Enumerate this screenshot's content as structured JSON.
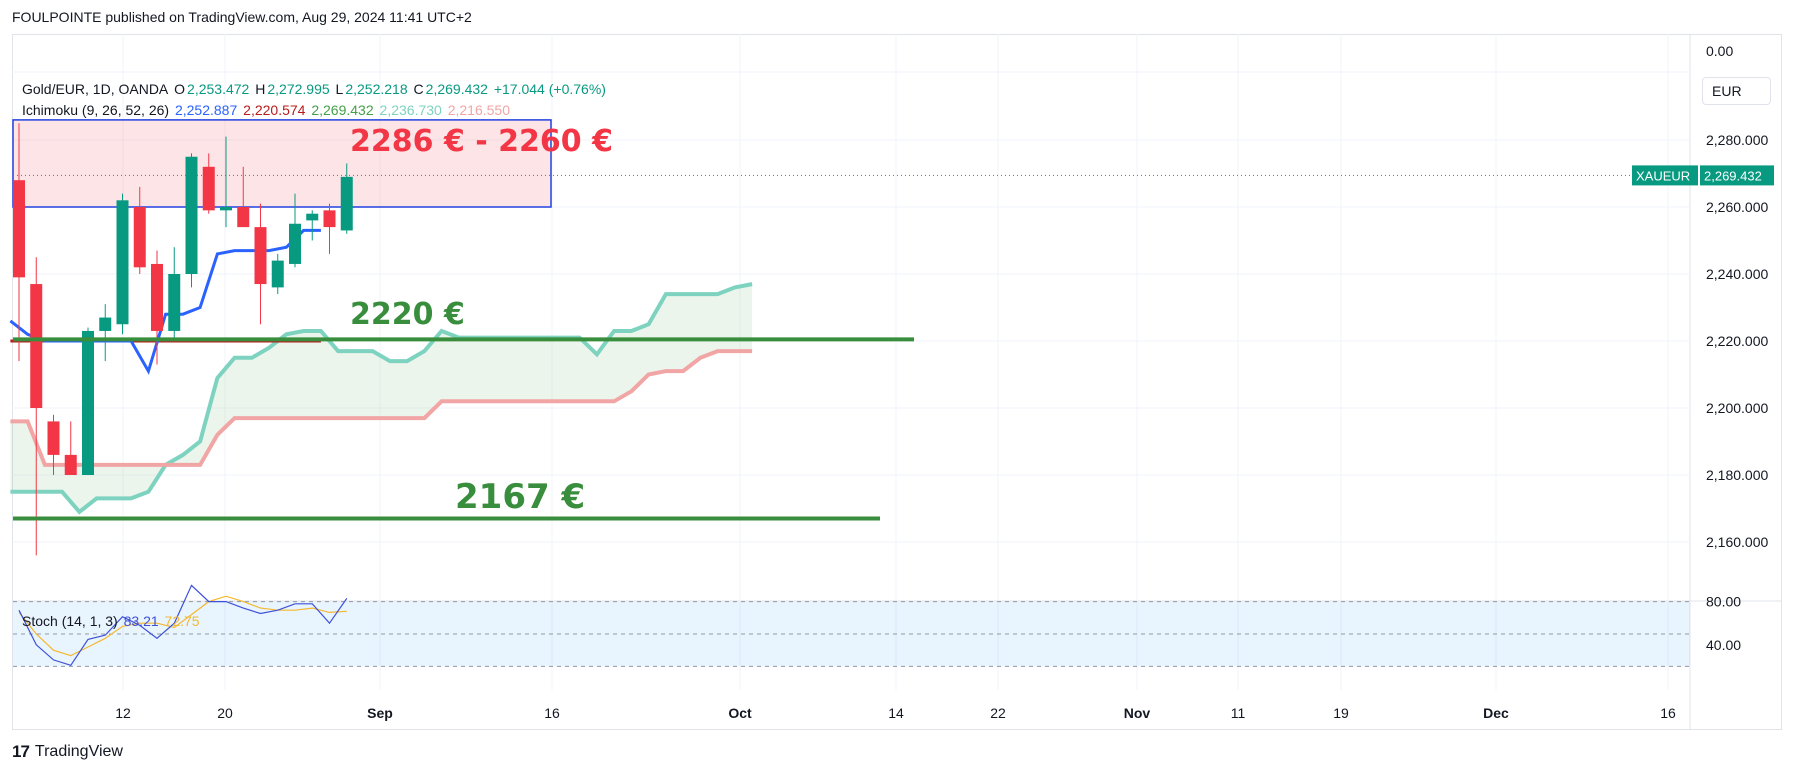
{
  "header": {
    "published": "FOULPOINTE published on TradingView.com, Aug 29, 2024 11:41 UTC+2"
  },
  "legend": {
    "symbol": "Gold/EUR, 1D, OANDA",
    "o_label": "O",
    "o": "2,253.472",
    "h_label": "H",
    "h": "2,272.995",
    "l_label": "L",
    "l": "2,252.218",
    "c_label": "C",
    "c": "2,269.432",
    "change": "+17.044 (+0.76%)",
    "ichimoku_label": "Ichimoku (9, 26, 52, 26)",
    "ichimoku_values": [
      "2,252.887",
      "2,220.574",
      "2,269.432",
      "2,236.730",
      "2,216.550"
    ],
    "stoch_label": "Stoch (14, 1, 3)",
    "stoch_k": "83.21",
    "stoch_d": "72.75"
  },
  "currency": "EUR",
  "price_tag": {
    "symbol": "XAUEUR",
    "value": "2,269.432"
  },
  "branding": "TradingView",
  "colors": {
    "up": "#089981",
    "down": "#f23645",
    "conversion": "#2962ff",
    "base": "#b71c1c",
    "lagging": "#43a047",
    "spanA": "#7dd3c0",
    "spanB": "#f1a5a5",
    "annotation_red": "#f23645",
    "annotation_green": "#388e3c",
    "stoch_k": "#3f51d8",
    "stoch_d": "#f5b830"
  },
  "chart_data": {
    "type": "candlestick",
    "ylim": [
      2150,
      2290
    ],
    "y_ticks": [
      "2,280.000",
      "2,260.000",
      "2,240.000",
      "2,220.000",
      "2,200.000",
      "2,180.000",
      "2,160.000"
    ],
    "top_tick": "0.00",
    "x_ticks": [
      "12",
      "20",
      "Sep",
      "16",
      "Oct",
      "14",
      "22",
      "Nov",
      "11",
      "19",
      "Dec",
      "16"
    ],
    "candles": [
      {
        "o": 2268,
        "h": 2285,
        "l": 2214,
        "c": 2239
      },
      {
        "o": 2237,
        "h": 2245,
        "l": 2156,
        "c": 2200
      },
      {
        "o": 2196,
        "h": 2198,
        "l": 2180,
        "c": 2186
      },
      {
        "o": 2186,
        "h": 2196,
        "l": 2180,
        "c": 2180
      },
      {
        "o": 2180,
        "h": 2224,
        "l": 2180,
        "c": 2223
      },
      {
        "o": 2223,
        "h": 2231,
        "l": 2214,
        "c": 2227
      },
      {
        "o": 2225,
        "h": 2264,
        "l": 2222,
        "c": 2262
      },
      {
        "o": 2260,
        "h": 2266,
        "l": 2240,
        "c": 2242
      },
      {
        "o": 2243,
        "h": 2247,
        "l": 2213,
        "c": 2223
      },
      {
        "o": 2223,
        "h": 2248,
        "l": 2220,
        "c": 2240
      },
      {
        "o": 2240,
        "h": 2276,
        "l": 2236,
        "c": 2275
      },
      {
        "o": 2272,
        "h": 2276,
        "l": 2258,
        "c": 2259
      },
      {
        "o": 2259,
        "h": 2281,
        "l": 2254,
        "c": 2260
      },
      {
        "o": 2260,
        "h": 2272,
        "l": 2254,
        "c": 2254
      },
      {
        "o": 2254,
        "h": 2261,
        "l": 2225,
        "c": 2237
      },
      {
        "o": 2236,
        "h": 2246,
        "l": 2234,
        "c": 2244
      },
      {
        "o": 2243,
        "h": 2264,
        "l": 2242,
        "c": 2255
      },
      {
        "o": 2256,
        "h": 2259,
        "l": 2250,
        "c": 2258
      },
      {
        "o": 2259,
        "h": 2261,
        "l": 2246,
        "c": 2254
      },
      {
        "o": 2253,
        "h": 2273,
        "l": 2252,
        "c": 2269
      }
    ],
    "ichimoku": {
      "conversion": [
        2226,
        2222,
        2220,
        2220,
        2220,
        2220,
        2220,
        2220,
        2211,
        2228,
        2228,
        2230,
        2246,
        2247,
        2247,
        2247,
        2248,
        2253,
        2253
      ],
      "base": [
        2220,
        2220,
        2220,
        2220,
        2220,
        2220,
        2220,
        2220,
        2220,
        2220,
        2220,
        2220,
        2220,
        2220,
        2220,
        2220,
        2220,
        2220,
        2220
      ],
      "lagging": [
        2220,
        2221,
        2221,
        2221,
        2221,
        2221,
        2221,
        2221,
        2221,
        2221,
        2221,
        2221,
        2221,
        2221,
        2221,
        2221,
        2221,
        2221,
        2221,
        2221,
        2221,
        2221,
        2221,
        2221,
        2221,
        2221,
        2221,
        2221,
        2221,
        2221,
        2221,
        2221,
        2221,
        2221,
        2221,
        2221,
        2221,
        2221,
        2221,
        2221,
        2221,
        2221,
        2221,
        2221,
        2221,
        2221,
        2221,
        2221,
        2221,
        2221,
        2221,
        2221,
        2221,
        2221,
        2221,
        2221,
        2221,
        2221
      ],
      "spanA": [
        2175,
        2175,
        2175,
        2175,
        2169,
        2173,
        2173,
        2173,
        2175,
        2183,
        2186,
        2190,
        2209,
        2215,
        2215,
        2218,
        2222,
        2223,
        2223,
        2217,
        2217,
        2217,
        2214,
        2214,
        2217,
        2223,
        2221,
        2221,
        2221,
        2221,
        2221,
        2221,
        2221,
        2221,
        2216,
        2223,
        2223,
        2225,
        2234,
        2234,
        2234,
        2234,
        2236,
        2237,
        2237
      ],
      "spanB": [
        2196,
        2196,
        2183,
        2183,
        2183,
        2183,
        2183,
        2183,
        2183,
        2183,
        2183,
        2183,
        2192,
        2197,
        2197,
        2197,
        2197,
        2197,
        2197,
        2197,
        2197,
        2197,
        2197,
        2197,
        2197,
        2202,
        2202,
        2202,
        2202,
        2202,
        2202,
        2202,
        2202,
        2202,
        2202,
        2202,
        2205,
        2210,
        2211,
        2211,
        2215,
        2217,
        2217,
        2217
      ]
    },
    "levels": [
      {
        "value": 2220.5,
        "label": "2220 €"
      },
      {
        "value": 2167,
        "label": "2167 €"
      }
    ],
    "zone": {
      "from": 2286,
      "to": 2260,
      "label": "2286 € - 2260 €"
    },
    "stoch": {
      "levels": [
        80,
        40
      ],
      "k": [
        72,
        40,
        26,
        21,
        45,
        49,
        66,
        58,
        46,
        60,
        95,
        80,
        80,
        74,
        69,
        72,
        78,
        78,
        60,
        83
      ],
      "d": [
        70,
        50,
        35,
        30,
        38,
        46,
        57,
        60,
        60,
        56,
        68,
        80,
        85,
        80,
        74,
        72,
        72,
        74,
        70,
        71
      ]
    }
  }
}
